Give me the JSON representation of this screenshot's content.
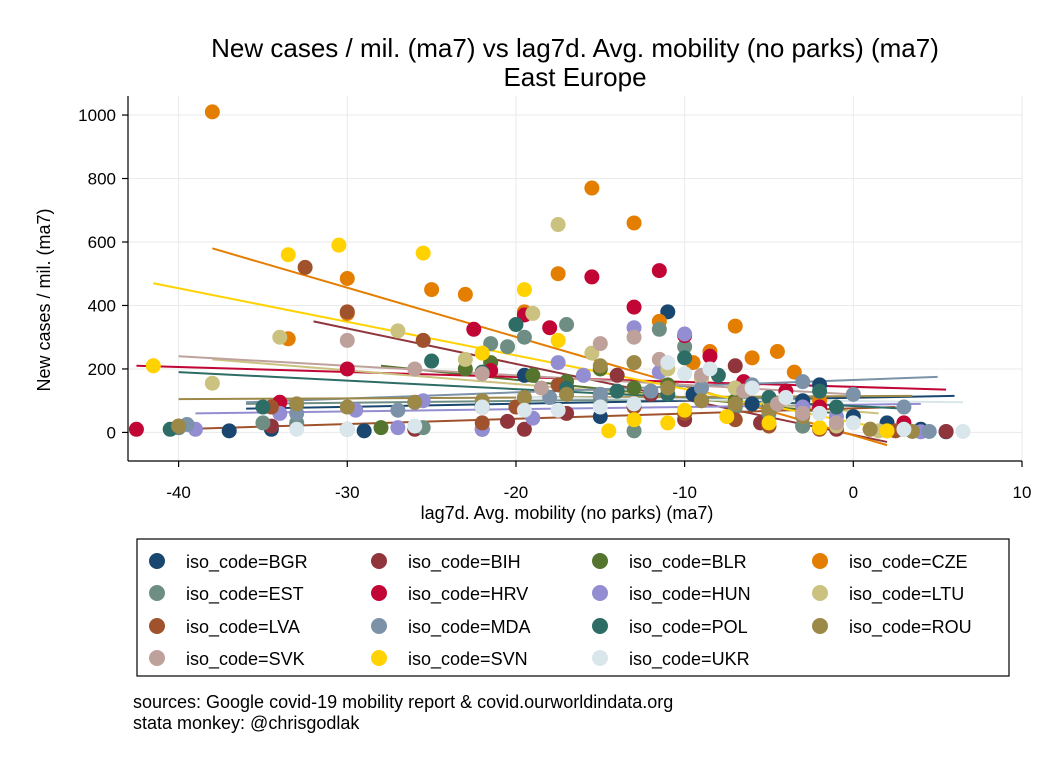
{
  "chart_data": {
    "type": "scatter",
    "title": "New cases / mil. (ma7) vs lag7d. Avg. mobility (no parks) (ma7)",
    "subtitle": "East Europe",
    "xlabel": "lag7d. Avg. mobility (no parks) (ma7)",
    "ylabel": "New cases / mil. (ma7)",
    "xlim": [
      -43,
      10
    ],
    "ylim": [
      -90,
      1060
    ],
    "xticks": [
      "-40",
      "-30",
      "-20",
      "-10",
      "0",
      "10"
    ],
    "xtick_values": [
      -40,
      -30,
      -20,
      -10,
      0,
      10
    ],
    "yticks": [
      "0",
      "200",
      "400",
      "600",
      "800",
      "1000"
    ],
    "ytick_values": [
      0,
      200,
      400,
      600,
      800,
      1000
    ],
    "grid": true,
    "legend_position": "bottom",
    "notes": [
      "sources: Google covid-19 mobility report & covid.ourworldindata.org",
      "stata monkey: @chrisgodlak"
    ],
    "series": [
      {
        "name": "iso_code=BGR",
        "color": "#1a476f",
        "points": [
          [
            -37,
            5
          ],
          [
            -34.5,
            10
          ],
          [
            -29,
            5
          ],
          [
            -22,
            80
          ],
          [
            -19.5,
            180
          ],
          [
            -15,
            50
          ],
          [
            -11,
            380
          ],
          [
            -9.5,
            120
          ],
          [
            -6,
            90
          ],
          [
            -3,
            100
          ],
          [
            -2,
            150
          ],
          [
            0,
            50
          ],
          [
            2,
            30
          ],
          [
            4,
            10
          ],
          [
            5.5,
            2
          ]
        ],
        "fit": [
          [
            -36,
            75
          ],
          [
            6,
            115
          ]
        ]
      },
      {
        "name": "iso_code=BIH",
        "color": "#90353b",
        "points": [
          [
            -40,
            15
          ],
          [
            -34.5,
            20
          ],
          [
            -26,
            10
          ],
          [
            -22,
            10
          ],
          [
            -20.5,
            35
          ],
          [
            -19.5,
            10
          ],
          [
            -17,
            60
          ],
          [
            -14,
            180
          ],
          [
            -12,
            120
          ],
          [
            -10,
            40
          ],
          [
            -7,
            210
          ],
          [
            -5.5,
            30
          ],
          [
            -3,
            20
          ],
          [
            -1,
            10
          ],
          [
            5.5,
            3
          ]
        ],
        "fit": [
          [
            -32,
            350
          ],
          [
            2,
            -30
          ]
        ]
      },
      {
        "name": "iso_code=BLR",
        "color": "#55752f",
        "points": [
          [
            -28,
            15
          ],
          [
            -23,
            200
          ],
          [
            -21.5,
            220
          ],
          [
            -19,
            180
          ],
          [
            -17,
            160
          ],
          [
            -15,
            200
          ],
          [
            -13,
            140
          ],
          [
            -11,
            150
          ],
          [
            -9,
            100
          ],
          [
            -7,
            100
          ],
          [
            -5,
            80
          ],
          [
            -3,
            60
          ]
        ],
        "fit": [
          [
            -28,
            210
          ],
          [
            -1,
            60
          ]
        ]
      },
      {
        "name": "iso_code=CZE",
        "color": "#e37e00",
        "points": [
          [
            -38,
            1010
          ],
          [
            -33.5,
            295
          ],
          [
            -30,
            485
          ],
          [
            -30,
            375
          ],
          [
            -25,
            450
          ],
          [
            -23,
            435
          ],
          [
            -19.5,
            380
          ],
          [
            -17.5,
            500
          ],
          [
            -15.5,
            770
          ],
          [
            -13,
            660
          ],
          [
            -11.5,
            350
          ],
          [
            -9.5,
            220
          ],
          [
            -8.5,
            255
          ],
          [
            -7,
            335
          ],
          [
            -6,
            235
          ],
          [
            -4.5,
            255
          ],
          [
            -3.5,
            190
          ],
          [
            -2,
            100
          ],
          [
            -1,
            30
          ],
          [
            1,
            10
          ],
          [
            2,
            5
          ]
        ],
        "fit": [
          [
            -38,
            580
          ],
          [
            2,
            -40
          ]
        ]
      },
      {
        "name": "iso_code=EST",
        "color": "#6e8e84",
        "points": [
          [
            -40,
            15
          ],
          [
            -35,
            30
          ],
          [
            -33,
            30
          ],
          [
            -30,
            10
          ],
          [
            -25.5,
            15
          ],
          [
            -21.5,
            280
          ],
          [
            -20.5,
            270
          ],
          [
            -19.5,
            300
          ],
          [
            -17,
            340
          ],
          [
            -15,
            100
          ],
          [
            -13,
            5
          ],
          [
            -11.5,
            325
          ],
          [
            -10,
            270
          ],
          [
            -7,
            80
          ],
          [
            -5,
            60
          ],
          [
            -3,
            20
          ]
        ],
        "fit": [
          [
            -36,
            90
          ],
          [
            -2,
            110
          ]
        ]
      },
      {
        "name": "iso_code=HRV",
        "color": "#c10534",
        "points": [
          [
            -42.5,
            10
          ],
          [
            -34,
            95
          ],
          [
            -30,
            200
          ],
          [
            -22.5,
            325
          ],
          [
            -21.5,
            195
          ],
          [
            -19.5,
            370
          ],
          [
            -18,
            330
          ],
          [
            -15.5,
            490
          ],
          [
            -13,
            395
          ],
          [
            -11.5,
            510
          ],
          [
            -10,
            305
          ],
          [
            -8.5,
            240
          ],
          [
            -6.5,
            160
          ],
          [
            -4,
            130
          ],
          [
            -2,
            80
          ],
          [
            3,
            30
          ]
        ],
        "fit": [
          [
            -42.5,
            210
          ],
          [
            5.5,
            135
          ]
        ]
      },
      {
        "name": "iso_code=HUN",
        "color": "#938dd2",
        "points": [
          [
            -39,
            10
          ],
          [
            -34,
            60
          ],
          [
            -29.5,
            70
          ],
          [
            -27,
            15
          ],
          [
            -25.5,
            100
          ],
          [
            -22,
            10
          ],
          [
            -19,
            45
          ],
          [
            -17.5,
            220
          ],
          [
            -16,
            180
          ],
          [
            -13,
            330
          ],
          [
            -11.5,
            190
          ],
          [
            -10,
            310
          ],
          [
            -7,
            140
          ],
          [
            -5,
            110
          ],
          [
            -3,
            80
          ],
          [
            -1,
            50
          ],
          [
            4,
            2
          ]
        ],
        "fit": [
          [
            -39,
            60
          ],
          [
            4,
            90
          ]
        ]
      },
      {
        "name": "iso_code=LTU",
        "color": "#cac27e",
        "points": [
          [
            -38,
            155
          ],
          [
            -34,
            300
          ],
          [
            -27,
            320
          ],
          [
            -23,
            230
          ],
          [
            -19,
            375
          ],
          [
            -17.5,
            655
          ],
          [
            -15.5,
            250
          ],
          [
            -13,
            220
          ],
          [
            -11,
            200
          ],
          [
            -9,
            170
          ],
          [
            -7,
            140
          ],
          [
            -5,
            100
          ],
          [
            -3,
            60
          ],
          [
            -1,
            20
          ],
          [
            1.5,
            5
          ]
        ],
        "fit": [
          [
            -38,
            230
          ],
          [
            1.5,
            60
          ]
        ]
      },
      {
        "name": "iso_code=LVA",
        "color": "#a0522d",
        "points": [
          [
            -40,
            20
          ],
          [
            -34.5,
            80
          ],
          [
            -32.5,
            520
          ],
          [
            -30,
            380
          ],
          [
            -25.5,
            290
          ],
          [
            -22,
            30
          ],
          [
            -20,
            80
          ],
          [
            -17.5,
            150
          ],
          [
            -15,
            120
          ],
          [
            -13,
            80
          ],
          [
            -10,
            60
          ],
          [
            -7,
            40
          ],
          [
            -5,
            20
          ],
          [
            -2,
            10
          ],
          [
            2.5,
            5
          ]
        ],
        "fit": [
          [
            -40,
            10
          ],
          [
            2.5,
            80
          ]
        ]
      },
      {
        "name": "iso_code=MDA",
        "color": "#7b92a8",
        "points": [
          [
            -39.5,
            25
          ],
          [
            -33,
            60
          ],
          [
            -27,
            70
          ],
          [
            -22,
            80
          ],
          [
            -18,
            110
          ],
          [
            -15,
            120
          ],
          [
            -12,
            130
          ],
          [
            -9,
            140
          ],
          [
            -6,
            150
          ],
          [
            -3,
            160
          ],
          [
            0,
            120
          ],
          [
            3,
            80
          ],
          [
            4.5,
            3
          ]
        ],
        "fit": [
          [
            -36,
            95
          ],
          [
            5,
            175
          ]
        ]
      },
      {
        "name": "iso_code=POL",
        "color": "#2d6d66",
        "points": [
          [
            -40.5,
            10
          ],
          [
            -35,
            80
          ],
          [
            -25,
            225
          ],
          [
            -22,
            190
          ],
          [
            -20,
            340
          ],
          [
            -17,
            140
          ],
          [
            -14,
            130
          ],
          [
            -11,
            120
          ],
          [
            -10,
            235
          ],
          [
            -8,
            180
          ],
          [
            -5,
            110
          ],
          [
            -2,
            130
          ],
          [
            -1,
            80
          ],
          [
            3,
            10
          ]
        ],
        "fit": [
          [
            -40,
            190
          ],
          [
            3,
            75
          ]
        ]
      },
      {
        "name": "iso_code=ROU",
        "color": "#9c8847",
        "points": [
          [
            -40,
            20
          ],
          [
            -33,
            90
          ],
          [
            -30,
            80
          ],
          [
            -26,
            95
          ],
          [
            -22,
            100
          ],
          [
            -19.5,
            110
          ],
          [
            -17,
            120
          ],
          [
            -15,
            210
          ],
          [
            -13,
            220
          ],
          [
            -11,
            140
          ],
          [
            -9,
            100
          ],
          [
            -7,
            90
          ],
          [
            -5,
            70
          ],
          [
            -3,
            50
          ],
          [
            1,
            10
          ],
          [
            3.5,
            3
          ]
        ],
        "fit": [
          [
            -40,
            105
          ],
          [
            3.5,
            115
          ]
        ]
      },
      {
        "name": "iso_code=SVK",
        "color": "#bfa19c",
        "points": [
          [
            -30,
            290
          ],
          [
            -26,
            200
          ],
          [
            -22,
            185
          ],
          [
            -18.5,
            140
          ],
          [
            -15,
            280
          ],
          [
            -13,
            300
          ],
          [
            -11.5,
            230
          ],
          [
            -9,
            180
          ],
          [
            -6.5,
            130
          ],
          [
            -4.5,
            90
          ],
          [
            -3,
            60
          ],
          [
            -1,
            30
          ]
        ],
        "fit": [
          [
            -40,
            240
          ],
          [
            0,
            120
          ]
        ]
      },
      {
        "name": "iso_code=SVN",
        "color": "#ffd200",
        "points": [
          [
            -41.5,
            210
          ],
          [
            -33.5,
            560
          ],
          [
            -30.5,
            590
          ],
          [
            -25.5,
            565
          ],
          [
            -22,
            250
          ],
          [
            -19.5,
            450
          ],
          [
            -17.5,
            290
          ],
          [
            -14.5,
            5
          ],
          [
            -13,
            40
          ],
          [
            -11,
            30
          ],
          [
            -10,
            70
          ],
          [
            -7.5,
            50
          ],
          [
            -5,
            30
          ],
          [
            -2,
            15
          ],
          [
            2,
            5
          ]
        ],
        "fit": [
          [
            -41.5,
            470
          ],
          [
            2,
            10
          ]
        ]
      },
      {
        "name": "iso_code=UKR",
        "color": "#d9e6eb",
        "points": [
          [
            -33,
            10
          ],
          [
            -30,
            10
          ],
          [
            -26,
            20
          ],
          [
            -22,
            80
          ],
          [
            -19.5,
            70
          ],
          [
            -17.5,
            70
          ],
          [
            -15,
            80
          ],
          [
            -13,
            90
          ],
          [
            -11,
            220
          ],
          [
            -10,
            185
          ],
          [
            -8.5,
            200
          ],
          [
            -6,
            140
          ],
          [
            -4,
            110
          ],
          [
            -2,
            60
          ],
          [
            0,
            30
          ],
          [
            3,
            10
          ],
          [
            6.5,
            3
          ]
        ],
        "fit": [
          [
            -20,
            110
          ],
          [
            6.5,
            95
          ]
        ]
      }
    ]
  }
}
